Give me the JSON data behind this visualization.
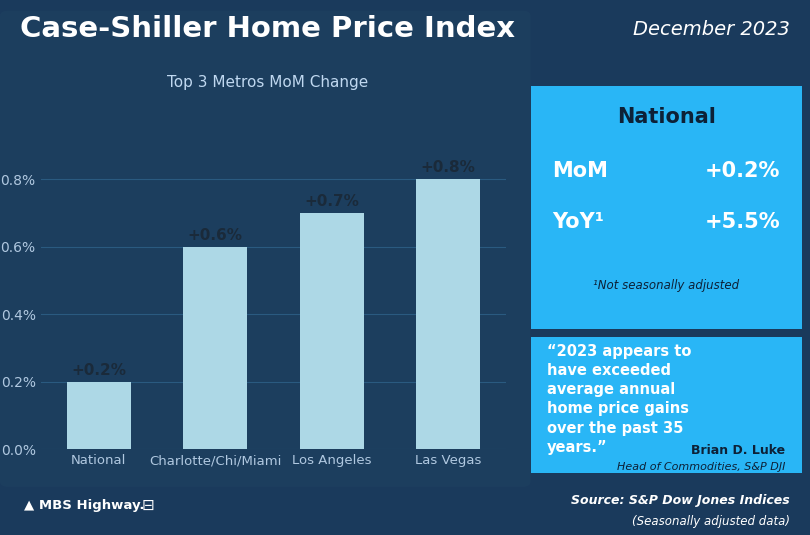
{
  "title": "Case-Shiller Home Price Index",
  "date_label": "December 2023",
  "subtitle": "Top 3 Metros MoM Change",
  "categories": [
    "National",
    "Charlotte/Chi/Miami",
    "Los Angeles",
    "Las Vegas"
  ],
  "values": [
    0.002,
    0.006,
    0.007,
    0.008
  ],
  "bar_labels": [
    "+0.2%",
    "+0.6%",
    "+0.7%",
    "+0.8%"
  ],
  "bar_color": "#add8e6",
  "ylim": [
    0,
    0.0095
  ],
  "yticks": [
    0.0,
    0.002,
    0.004,
    0.006,
    0.008
  ],
  "ytick_labels": [
    "0.0%",
    "0.2%",
    "0.4%",
    "0.6%",
    "0.8%"
  ],
  "bg_color": "#1a3a5c",
  "chart_bg_color": "#1e4060",
  "box_color": "#29b6f6",
  "national_title": "National",
  "mom_label": "MoM",
  "mom_value": "+0.2%",
  "yoy_label": "YoY¹",
  "yoy_value": "+5.5%",
  "footnote": "¹Not seasonally adjusted",
  "quote_line1": "“2023 appears to",
  "quote_line2": "have exceeded",
  "quote_line3": "average annual",
  "quote_line4": "home price gains",
  "quote_line5": "over the past 35",
  "quote_line6": "years.”",
  "attribution": "Brian D. Luke",
  "attribution_title": "Head of Commodities, S&P DJI",
  "source_bold": "Source: S&P Dow Jones Indices",
  "source_italic": "(Seasonally adjusted data)",
  "title_color": "#ffffff",
  "date_color": "#ffffff",
  "subtitle_color": "#c0d8f0",
  "bar_label_color": "#1a2a3a",
  "tick_color": "#b0c8e0",
  "grid_color": "#2a5a80"
}
